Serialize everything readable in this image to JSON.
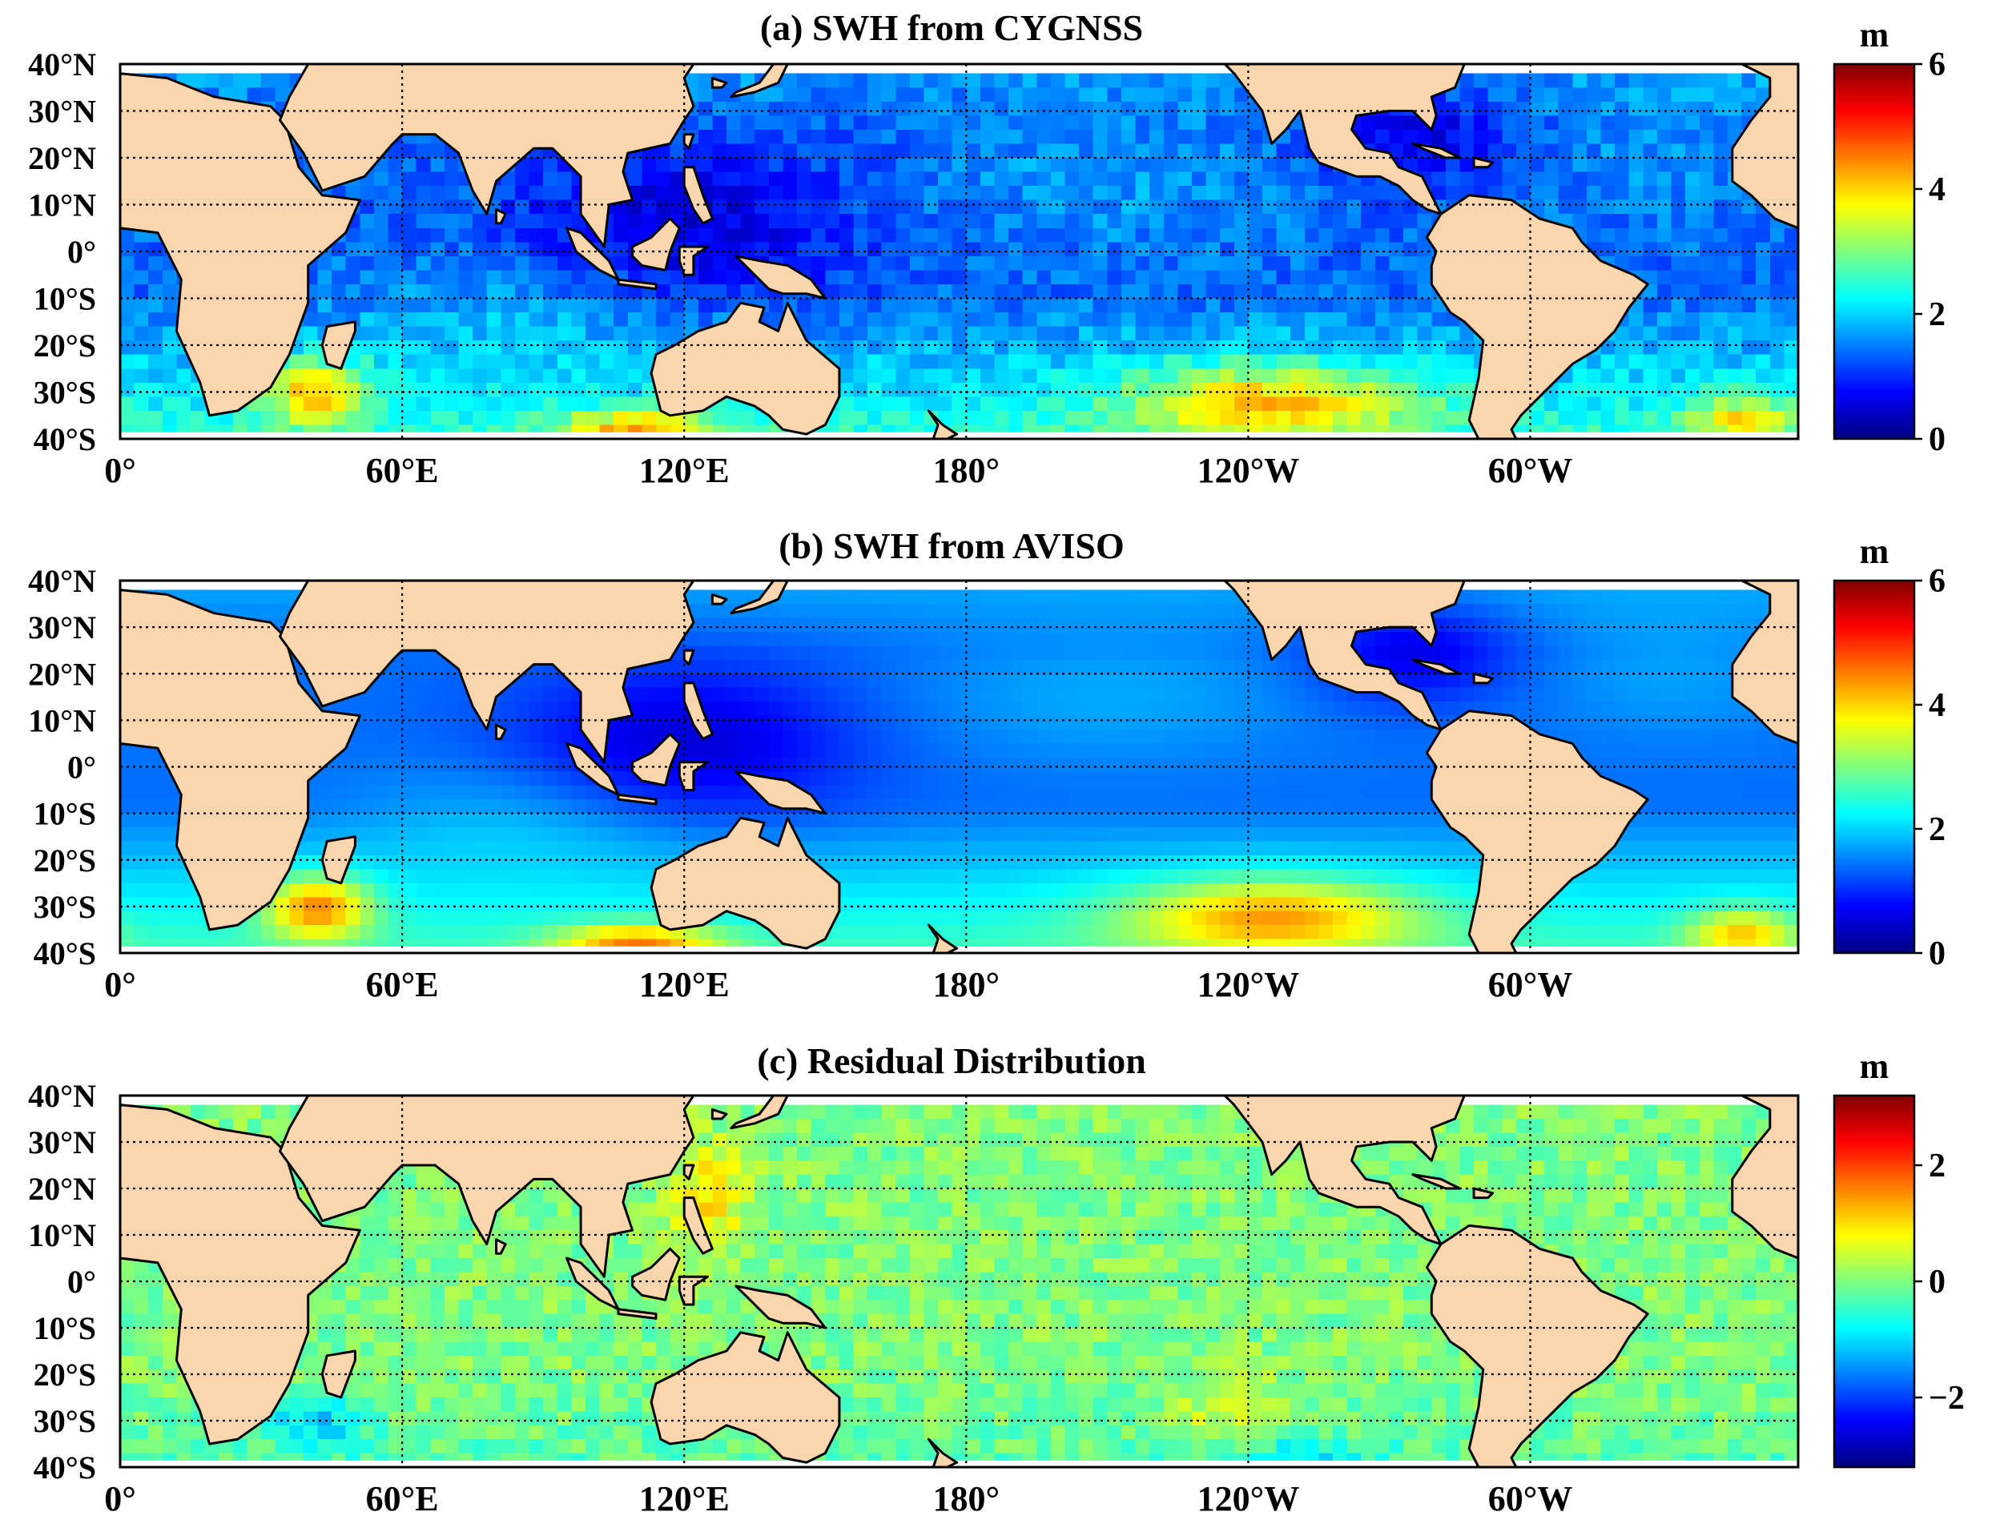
{
  "colors": {
    "land": "#f9d6ae",
    "coast": "#000000",
    "nodata": "#ffffff",
    "colormap": [
      "#00007f",
      "#0000ff",
      "#007fff",
      "#00ffff",
      "#7fff7f",
      "#ffff00",
      "#ff7f00",
      "#ff0000",
      "#7f0000"
    ]
  },
  "longitude_ticks": [
    "0°",
    "60°E",
    "120°E",
    "180°",
    "120°W",
    "60°W"
  ],
  "latitude_ticks": [
    "40°N",
    "30°N",
    "20°N",
    "10°N",
    "0°",
    "10°S",
    "20°S",
    "30°S",
    "40°S"
  ],
  "panels": [
    {
      "title": "(a) SWH from CYGNSS",
      "colorbar": {
        "unit": "m",
        "range": [
          0,
          6
        ],
        "tick_values": [
          0,
          2,
          4,
          6
        ],
        "tick_labels": [
          "0",
          "2",
          "4",
          "6"
        ]
      },
      "field": "cygnss"
    },
    {
      "title": "(b) SWH from AVISO",
      "colorbar": {
        "unit": "m",
        "range": [
          0,
          6
        ],
        "tick_values": [
          0,
          2,
          4,
          6
        ],
        "tick_labels": [
          "0",
          "2",
          "4",
          "6"
        ]
      },
      "field": "aviso"
    },
    {
      "title": "(c) Residual Distribution",
      "colorbar": {
        "unit": "m",
        "range": [
          -3.2,
          3.2
        ],
        "tick_values": [
          -2,
          0,
          2
        ],
        "tick_labels": [
          "−2",
          "0",
          "2"
        ]
      },
      "field": "residual"
    }
  ]
}
